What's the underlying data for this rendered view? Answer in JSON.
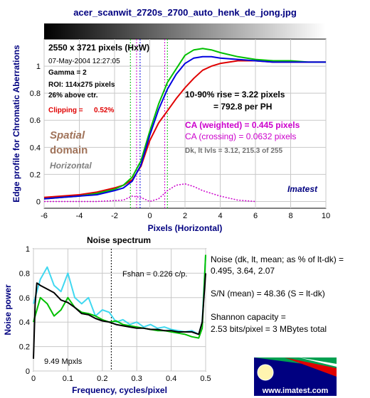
{
  "page": {
    "file_title": "acer_scanwit_2720s_2700_auto_henk_de_jong.jpg"
  },
  "edge_info": {
    "size": "2550 x 3721 pixels (HxW)",
    "date": "07-May-2004 12:27:05",
    "gamma": "Gamma = 2",
    "roi": "ROI: 114x275 pixels",
    "pct": "26% above ctr.",
    "clipping_label": "Clipping =",
    "clipping_value": "0.52%",
    "rise": "10-90% rise = 3.22 pixels",
    "per_ph": "= 792.8 per PH",
    "ca_weighted": "CA (weighted) = 0.445 pixels",
    "ca_crossing": "CA (crossing) = 0.0632 pixels",
    "levels": "Dk, lt lvls = 3.12, 215.3 of 255",
    "spatial": "Spatial",
    "domain": "domain",
    "orientation": "Horizontal",
    "brand": "Imatest"
  },
  "noise_info": {
    "noise_line1": "Noise (dk, lt, mean; as % of lt-dk) =",
    "noise_line2": "0.495,  3.64,  2.07",
    "sn": "S/N (mean) = 48.36  (S = lt-dk)",
    "shannon1": "Shannon capacity =",
    "shannon2": "2.53 bits/pixel = 3 MBytes total",
    "fshan": "Fshan = 0.226 c/p.",
    "mpxls": "9.49 Mpxls"
  },
  "logo": {
    "url": "www.imatest.com"
  },
  "colors": {
    "red": "#e00000",
    "green": "#00c000",
    "blue": "#0000e0",
    "magenta": "#cc00cc",
    "spatial": "#a0735a",
    "brand_blue": "#000080",
    "axis_title": "#000080",
    "cyan": "#40d8f0",
    "noise_green": "#30d030"
  },
  "chart_data": [
    {
      "type": "line",
      "title": "",
      "xlabel": "Pixels (Horizontal)",
      "ylabel": "Edge profile for Chromatic Aberrations",
      "xlim": [
        -6,
        10
      ],
      "ylim": [
        -0.05,
        1.2
      ],
      "x_ticks": [
        "-6",
        "-4",
        "-2",
        "0",
        "2",
        "4",
        "6",
        "8",
        "10"
      ],
      "y_ticks": [
        "0",
        "0.2",
        "0.4",
        "0.6",
        "0.8",
        "1"
      ],
      "grid": true,
      "series": [
        {
          "color": "red",
          "x": [
            -6,
            -5,
            -4,
            -3,
            -2,
            -1.5,
            -1,
            -0.5,
            0,
            0.5,
            1,
            1.5,
            2,
            2.5,
            3,
            3.5,
            4,
            5,
            6,
            7,
            8,
            9,
            10
          ],
          "y": [
            0.03,
            0.04,
            0.05,
            0.07,
            0.1,
            0.12,
            0.16,
            0.26,
            0.45,
            0.58,
            0.67,
            0.76,
            0.84,
            0.91,
            0.97,
            1.0,
            1.02,
            1.04,
            1.04,
            1.03,
            1.03,
            1.03,
            1.03
          ]
        },
        {
          "color": "green",
          "x": [
            -6,
            -5,
            -4,
            -3,
            -2,
            -1.5,
            -1,
            -0.5,
            0,
            0.5,
            1,
            1.5,
            2,
            2.5,
            3,
            3.5,
            4,
            5,
            6,
            7,
            8,
            9,
            10
          ],
          "y": [
            0.02,
            0.03,
            0.04,
            0.06,
            0.09,
            0.12,
            0.18,
            0.3,
            0.52,
            0.72,
            0.88,
            0.98,
            1.08,
            1.12,
            1.13,
            1.12,
            1.1,
            1.07,
            1.05,
            1.04,
            1.04,
            1.03,
            1.03
          ]
        },
        {
          "color": "blue",
          "x": [
            -6,
            -5,
            -4,
            -3,
            -2,
            -1.5,
            -1,
            -0.5,
            0,
            0.5,
            1,
            1.5,
            2,
            2.5,
            3,
            3.5,
            4,
            5,
            6,
            7,
            8,
            9,
            10
          ],
          "y": [
            0.02,
            0.03,
            0.04,
            0.05,
            0.08,
            0.1,
            0.15,
            0.27,
            0.49,
            0.68,
            0.83,
            0.94,
            1.02,
            1.06,
            1.07,
            1.07,
            1.06,
            1.05,
            1.04,
            1.03,
            1.03,
            1.03,
            1.03
          ]
        },
        {
          "color": "magenta",
          "x": [
            -6,
            -3,
            -1.5,
            -1,
            -0.5,
            0,
            0.5,
            1,
            1.5,
            2,
            2.5,
            3,
            3.5,
            4,
            5,
            6
          ],
          "y": [
            0.0,
            0.0,
            0.01,
            0.04,
            0.03,
            0.0,
            0.02,
            0.08,
            0.12,
            0.13,
            0.11,
            0.08,
            0.06,
            0.04,
            0.01,
            0.0
          ]
        }
      ],
      "vlines": [
        {
          "x": -1.1,
          "color": "green"
        },
        {
          "x": -0.75,
          "color": "magenta"
        },
        {
          "x": -0.55,
          "color": "blue"
        },
        {
          "x": 0.85,
          "color": "magenta"
        },
        {
          "x": 1.0,
          "color": "green"
        }
      ]
    },
    {
      "type": "line",
      "title": "Noise spectrum",
      "xlabel": "Frequency, cycles/pixel",
      "ylabel": "Noise power",
      "xlim": [
        0,
        0.5
      ],
      "ylim": [
        0,
        1
      ],
      "x_ticks": [
        "0",
        "0.1",
        "0.2",
        "0.3",
        "0.4",
        "0.5"
      ],
      "y_ticks": [
        "0",
        "0.2",
        "0.4",
        "0.6",
        "0.8",
        "1"
      ],
      "grid": true,
      "series": [
        {
          "color": "cyan",
          "x": [
            0,
            0.02,
            0.04,
            0.06,
            0.08,
            0.1,
            0.12,
            0.14,
            0.16,
            0.18,
            0.2,
            0.22,
            0.24,
            0.26,
            0.28,
            0.3,
            0.32,
            0.34,
            0.36,
            0.38,
            0.4,
            0.42,
            0.44,
            0.46,
            0.48,
            0.49,
            0.5
          ],
          "y": [
            0.55,
            0.75,
            0.85,
            0.7,
            0.65,
            0.8,
            0.6,
            0.55,
            0.6,
            0.45,
            0.5,
            0.48,
            0.4,
            0.42,
            0.38,
            0.4,
            0.36,
            0.38,
            0.35,
            0.36,
            0.34,
            0.33,
            0.32,
            0.33,
            0.3,
            0.4,
            0.95
          ]
        },
        {
          "color": "green",
          "x": [
            0,
            0.02,
            0.04,
            0.06,
            0.08,
            0.1,
            0.12,
            0.14,
            0.16,
            0.18,
            0.2,
            0.22,
            0.24,
            0.26,
            0.28,
            0.3,
            0.32,
            0.34,
            0.36,
            0.38,
            0.4,
            0.42,
            0.44,
            0.46,
            0.48,
            0.49,
            0.5
          ],
          "y": [
            0.4,
            0.6,
            0.55,
            0.45,
            0.5,
            0.6,
            0.52,
            0.48,
            0.47,
            0.45,
            0.42,
            0.4,
            0.41,
            0.38,
            0.37,
            0.36,
            0.35,
            0.34,
            0.33,
            0.33,
            0.32,
            0.31,
            0.3,
            0.28,
            0.27,
            0.35,
            0.95
          ]
        },
        {
          "color": "black",
          "x": [
            0,
            0.005,
            0.01,
            0.02,
            0.04,
            0.06,
            0.08,
            0.1,
            0.12,
            0.14,
            0.16,
            0.18,
            0.2,
            0.22,
            0.24,
            0.26,
            0.28,
            0.3,
            0.32,
            0.34,
            0.36,
            0.38,
            0.4,
            0.42,
            0.44,
            0.46,
            0.48,
            0.49,
            0.5
          ],
          "y": [
            0.1,
            0.55,
            0.72,
            0.7,
            0.67,
            0.64,
            0.58,
            0.56,
            0.52,
            0.47,
            0.46,
            0.43,
            0.41,
            0.4,
            0.38,
            0.37,
            0.36,
            0.35,
            0.35,
            0.34,
            0.34,
            0.33,
            0.33,
            0.32,
            0.32,
            0.32,
            0.3,
            0.4,
            0.8
          ]
        }
      ],
      "vlines": [
        {
          "x": 0.226,
          "color": "black"
        }
      ]
    }
  ]
}
